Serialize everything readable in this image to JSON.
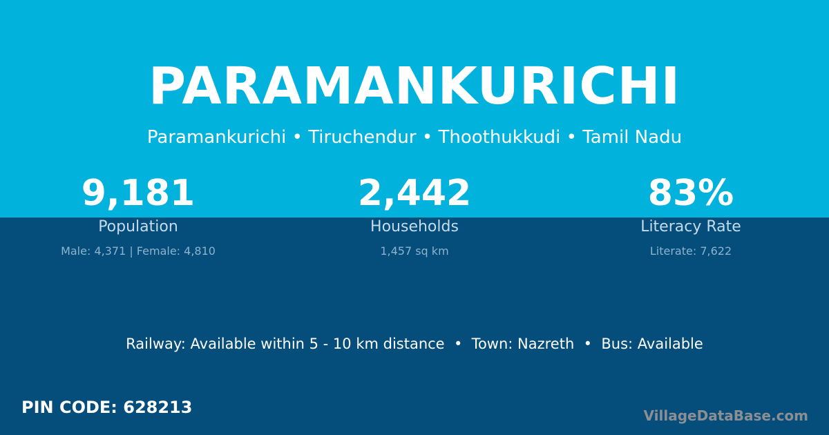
{
  "title": "PARAMANKURICHI",
  "breadcrumb": "Paramankurichi • Tiruchendur • Thoothukkudi • Tamil Nadu",
  "stats": [
    {
      "value": "9,181",
      "label": "Population",
      "detail": "Male: 4,371 | Female: 4,810"
    },
    {
      "value": "2,442",
      "label": "Households",
      "detail": "1,457 sq km"
    },
    {
      "value": "83%",
      "label": "Literacy Rate",
      "detail": "Literate: 7,622"
    }
  ],
  "facilities": "Railway: Available within 5 - 10 km distance  •  Town: Nazreth  •  Bus: Available",
  "pin_code": "PIN CODE: 628213",
  "brand": "VillageDataBase.com",
  "colors": {
    "header": "#00b2dc",
    "body": "#054d7a"
  }
}
